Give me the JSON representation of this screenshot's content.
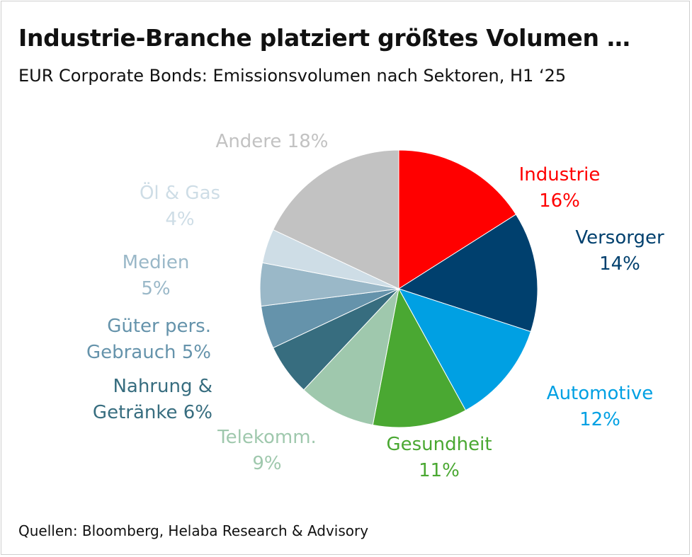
{
  "title": "Industrie-Branche platziert größtes Volumen …",
  "subtitle": "EUR Corporate Bonds: Emissionsvolumen nach Sektoren, H1 ‘25",
  "source": "Quellen: Bloomberg, Helaba Research & Advisory",
  "chart_data": {
    "type": "pie",
    "title": "Industrie-Branche platziert größtes Volumen …",
    "subtitle": "EUR Corporate Bonds: Emissionsvolumen nach Sektoren, H1 ‘25",
    "unit": "%",
    "slices": [
      {
        "label": "Industrie",
        "value": 16,
        "color": "#ff0000",
        "label_lines": [
          "Industrie",
          "16%"
        ]
      },
      {
        "label": "Versorger",
        "value": 14,
        "color": "#00406e",
        "label_lines": [
          "Versorger",
          "14%"
        ]
      },
      {
        "label": "Automotive",
        "value": 12,
        "color": "#00a0e3",
        "label_lines": [
          "Automotive",
          "12%"
        ]
      },
      {
        "label": "Gesundheit",
        "value": 11,
        "color": "#4aa832",
        "label_lines": [
          "Gesundheit",
          "11%"
        ]
      },
      {
        "label": "Telekomm.",
        "value": 9,
        "color": "#9fc8ad",
        "label_lines": [
          "Telekomm.",
          "9%"
        ]
      },
      {
        "label": "Nahrung & Getränke",
        "value": 6,
        "color": "#376d7f",
        "label_lines": [
          "Nahrung &",
          "Getränke 6%"
        ]
      },
      {
        "label": "Güter pers. Gebrauch",
        "value": 5,
        "color": "#6593ab",
        "label_lines": [
          "Güter pers.",
          "Gebrauch 5%"
        ]
      },
      {
        "label": "Medien",
        "value": 5,
        "color": "#9ab8c8",
        "label_lines": [
          "Medien",
          "5%"
        ]
      },
      {
        "label": "Öl & Gas",
        "value": 4,
        "color": "#cedde6",
        "label_lines": [
          "Öl & Gas",
          "4%"
        ]
      },
      {
        "label": "Andere",
        "value": 18,
        "color": "#c2c2c2",
        "label_lines": [
          "Andere 18%"
        ]
      }
    ]
  }
}
